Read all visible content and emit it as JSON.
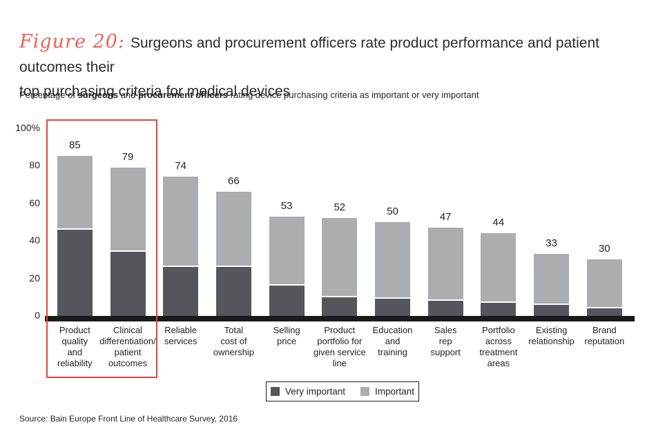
{
  "header": {
    "figure_label": "Figure 20:",
    "title_line1": "Surgeons and procurement officers rate product performance and patient outcomes their",
    "title_line2": "top purchasing criteria for medical devices"
  },
  "subtitle": {
    "prefix": "Percentage of ",
    "bold1": "surgeons",
    "mid": " and ",
    "bold2": "procurement officers",
    "suffix": " rating device purchasing criteria as important or very important"
  },
  "source": "Source: Bain Europe Front Line of Healthcare Survey, 2016",
  "colors": {
    "very_important": "#54565B",
    "important": "#ABADAF",
    "accent_red": "#E8423A",
    "figure_label_red": "#EF5F58",
    "axis_black": "#1A1A1A",
    "text": "#231F20"
  },
  "chart_data": {
    "type": "bar",
    "stacked": true,
    "title": "Percentage of surgeons and procurement officers rating device purchasing criteria as important or very important",
    "categories": [
      "Product quality and reliability",
      "Clinical differentiation/ patient outcomes",
      "Reliable services",
      "Total cost of ownership",
      "Selling price",
      "Product portfolio for given service line",
      "Education and training",
      "Sales rep support",
      "Portfolio across treatment areas",
      "Existing relationship",
      "Brand reputation"
    ],
    "category_lines": [
      "Product\nquality\nand\nreliability",
      "Clinical\ndifferentiation/\npatient\noutcomes",
      "Reliable\nservices",
      "Total\ncost of\nownership",
      "Selling\nprice",
      "Product\nportfolio for\ngiven service\nline",
      "Education\nand\ntraining",
      "Sales\nrep\nsupport",
      "Portfolio\nacross\ntreatment\nareas",
      "Existing\nrelationship",
      "Brand\nreputation"
    ],
    "series": [
      {
        "name": "Very important",
        "values": [
          46,
          34,
          26,
          26,
          16,
          10,
          9,
          8,
          7,
          6,
          4
        ]
      },
      {
        "name": "Important",
        "values": [
          39,
          45,
          48,
          40,
          37,
          42,
          41,
          39,
          37,
          27,
          26
        ]
      }
    ],
    "totals": [
      85,
      79,
      74,
      66,
      53,
      52,
      50,
      47,
      44,
      33,
      30
    ],
    "y_axis": {
      "ticks": [
        {
          "value": 0,
          "label": "0"
        },
        {
          "value": 20,
          "label": "20"
        },
        {
          "value": 40,
          "label": "40"
        },
        {
          "value": 60,
          "label": "60"
        },
        {
          "value": 80,
          "label": "80"
        },
        {
          "value": 100,
          "label": "100%"
        }
      ],
      "ylim": [
        0,
        100
      ]
    },
    "legend": {
      "position": "bottom-center",
      "entries": [
        "Very important",
        "Important"
      ]
    },
    "highlight_box": {
      "categories": [
        0,
        1
      ],
      "description": "red box around first two bars and their axis labels"
    }
  }
}
